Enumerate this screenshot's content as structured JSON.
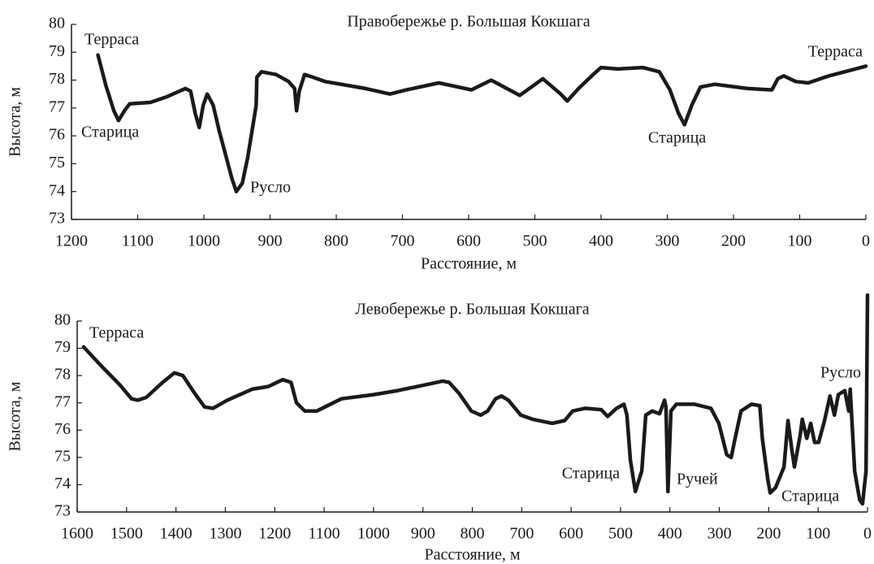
{
  "chart_data": [
    {
      "type": "line",
      "title": "Правобережье р. Большая Кокшага",
      "xlabel": "Расстояние, м",
      "ylabel": "Высота, м",
      "color": "#1a1a1a",
      "x": [
        1160,
        1148,
        1136,
        1129,
        1120,
        1112,
        1081,
        1056,
        1028,
        1020,
        1013,
        1007,
        1001,
        995,
        986,
        977,
        967,
        958,
        951,
        942,
        934,
        925,
        921,
        920,
        913,
        891,
        872,
        863,
        860,
        856,
        848,
        835,
        817,
        756,
        719,
        694,
        645,
        596,
        566,
        523,
        488,
        461,
        451,
        434,
        412,
        400,
        375,
        337,
        312,
        296,
        283,
        274,
        263,
        250,
        228,
        179,
        142,
        133,
        124,
        106,
        87,
        56,
        0
      ],
      "values": [
        78.9,
        77.8,
        76.9,
        76.55,
        76.9,
        77.15,
        77.2,
        77.4,
        77.7,
        77.6,
        76.8,
        76.3,
        77.1,
        77.5,
        77.1,
        76.2,
        75.3,
        74.5,
        74.0,
        74.3,
        75.2,
        76.5,
        77.1,
        78.1,
        78.3,
        78.2,
        77.95,
        77.7,
        76.9,
        77.6,
        78.2,
        78.1,
        77.95,
        77.7,
        77.5,
        77.65,
        77.9,
        77.65,
        78.0,
        77.45,
        78.05,
        77.5,
        77.25,
        77.7,
        78.2,
        78.45,
        78.4,
        78.45,
        78.3,
        77.65,
        76.8,
        76.4,
        77.1,
        77.75,
        77.85,
        77.7,
        77.65,
        78.05,
        78.15,
        77.95,
        77.9,
        78.15,
        78.5
      ],
      "xlim": [
        1200,
        0
      ],
      "ylim": [
        73,
        80
      ],
      "xticks": [
        1200,
        1100,
        1000,
        900,
        800,
        700,
        600,
        500,
        400,
        300,
        200,
        100,
        0
      ],
      "yticks": [
        73,
        74,
        75,
        76,
        77,
        78,
        79,
        80
      ],
      "annotations": [
        "Терраса",
        "Старица",
        "Русло",
        "Старица",
        "Терраса"
      ]
    },
    {
      "type": "line",
      "title": "Левобережье р. Большая Кокшага",
      "xlabel": "Расстояние, м",
      "ylabel": "Высота, м",
      "color": "#1a1a1a",
      "x": [
        1587,
        1551,
        1513,
        1490,
        1477,
        1460,
        1427,
        1403,
        1386,
        1362,
        1342,
        1325,
        1296,
        1246,
        1213,
        1184,
        1167,
        1156,
        1139,
        1115,
        1065,
        1000,
        951,
        885,
        860,
        847,
        827,
        802,
        783,
        769,
        753,
        741,
        727,
        702,
        678,
        638,
        613,
        597,
        572,
        539,
        526,
        508,
        493,
        487,
        480,
        470,
        457,
        449,
        436,
        421,
        411,
        408,
        404,
        398,
        387,
        350,
        317,
        301,
        285,
        276,
        268,
        256,
        235,
        218,
        213,
        202,
        197,
        186,
        169,
        161,
        153,
        148,
        136,
        132,
        123,
        115,
        107,
        99,
        87,
        76,
        67,
        59,
        46,
        38,
        35,
        26,
        16,
        10,
        3,
        0
      ],
      "values": [
        79.05,
        78.35,
        77.65,
        77.15,
        77.1,
        77.2,
        77.75,
        78.1,
        78.0,
        77.35,
        76.85,
        76.8,
        77.1,
        77.5,
        77.6,
        77.85,
        77.75,
        77.0,
        76.7,
        76.7,
        77.15,
        77.3,
        77.45,
        77.7,
        77.8,
        77.75,
        77.35,
        76.7,
        76.55,
        76.7,
        77.15,
        77.25,
        77.1,
        76.55,
        76.4,
        76.25,
        76.35,
        76.7,
        76.8,
        76.75,
        76.5,
        76.8,
        76.95,
        76.55,
        74.9,
        73.75,
        74.5,
        76.55,
        76.7,
        76.6,
        77.1,
        76.85,
        73.75,
        76.7,
        76.95,
        76.95,
        76.8,
        76.25,
        75.1,
        75.0,
        75.7,
        76.7,
        76.95,
        76.9,
        75.7,
        74.2,
        73.7,
        73.9,
        74.65,
        76.35,
        75.25,
        74.65,
        75.85,
        76.4,
        75.7,
        76.25,
        75.55,
        75.55,
        76.35,
        77.25,
        76.55,
        77.3,
        77.45,
        76.7,
        77.5,
        74.5,
        73.45,
        73.3,
        74.5,
        80.95
      ],
      "xlim": [
        1600,
        0
      ],
      "ylim": [
        73,
        80
      ],
      "xticks": [
        1600,
        1500,
        1400,
        1300,
        1200,
        1100,
        1000,
        900,
        800,
        700,
        600,
        500,
        400,
        300,
        200,
        100,
        0
      ],
      "yticks": [
        73,
        74,
        75,
        76,
        77,
        78,
        79,
        80
      ],
      "annotations": [
        "Терраса",
        "Старица",
        "Ручей",
        "Старица",
        "Русло"
      ]
    }
  ]
}
